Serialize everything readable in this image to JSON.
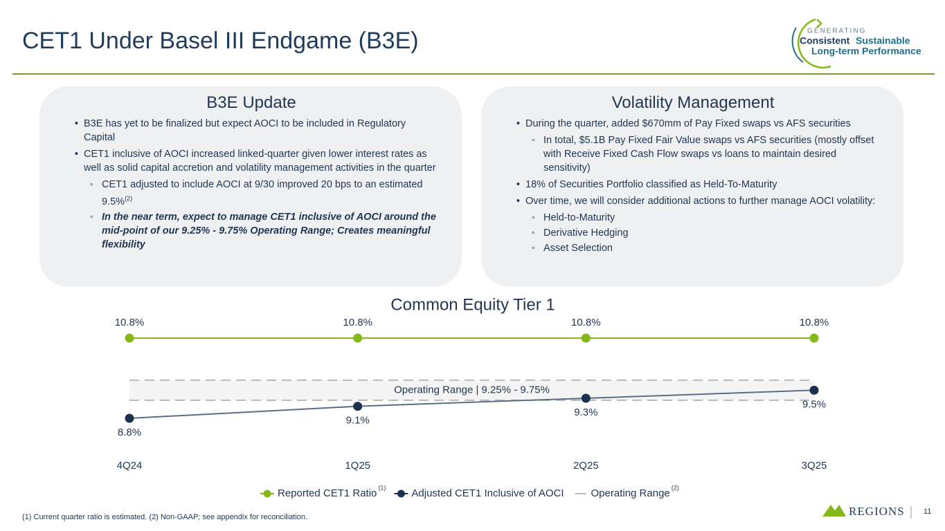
{
  "header": {
    "title": "CET1 Under Basel III Endgame (B3E)"
  },
  "logo": {
    "line1": "GENERATING",
    "word1": "Consistent",
    "word2": "Sustainable",
    "line3": "Long-term Performance"
  },
  "left_panel": {
    "title": "B3E Update",
    "items": [
      {
        "text": "B3E has yet to be finalized but expect AOCI to be included in Regulatory Capital"
      },
      {
        "text": "CET1 inclusive of AOCI increased linked-quarter given lower interest rates as well as solid capital accretion and volatility management activities in the quarter",
        "sub": [
          {
            "text": "CET1 adjusted to include AOCI at 9/30 improved 20 bps to an estimated 9.5%",
            "note": "(2)"
          },
          {
            "text": "In the near term, expect to manage CET1 inclusive of AOCI around the mid-point of our 9.25% - 9.75% Operating Range; Creates meaningful flexibility"
          }
        ]
      }
    ]
  },
  "right_panel": {
    "title": "Volatility Management",
    "items": [
      {
        "text": "During the quarter, added $670mm of Pay Fixed swaps vs AFS securities",
        "sub": [
          {
            "text": "In total, $5.1B Pay Fixed Fair Value swaps vs AFS securities (mostly offset with Receive Fixed Cash Flow swaps vs loans to maintain desired sensitivity)"
          }
        ]
      },
      {
        "text": "18% of Securities Portfolio classified as Held-To-Maturity"
      },
      {
        "text": "Over time, we will consider additional actions to further manage AOCI volatility:",
        "sub": [
          {
            "text": "Held-to-Maturity"
          },
          {
            "text": "Derivative Hedging"
          },
          {
            "text": "Asset Selection"
          }
        ]
      }
    ]
  },
  "chart_data": {
    "type": "line",
    "title": "Common Equity Tier 1",
    "categories": [
      "4Q24",
      "1Q25",
      "2Q25",
      "3Q25"
    ],
    "series": [
      {
        "name": "Reported CET1 Ratio",
        "note": "(1)",
        "color": "#84b818",
        "values": [
          10.8,
          10.8,
          10.8,
          10.8
        ],
        "value_labels": [
          "10.8%",
          "10.8%",
          "10.8%",
          "10.8%"
        ],
        "label_position": "above"
      },
      {
        "name": "Adjusted CET1 Inclusive of AOCI",
        "color": "#1c3050",
        "values": [
          8.8,
          9.1,
          9.3,
          9.5
        ],
        "value_labels": [
          "8.8%",
          "9.1%",
          "9.3%",
          "9.5%"
        ],
        "label_position": "below"
      }
    ],
    "range": {
      "name": "Operating Range",
      "note": "(2)",
      "label": "Operating Range | 9.25% - 9.75%",
      "low": 9.25,
      "high": 9.75,
      "color": "#b8b8b8"
    },
    "legend": "bottom"
  },
  "footnote": "(1) Current quarter ratio is estimated. (2) Non-GAAP; see appendix for reconciliation.",
  "footer": {
    "brand": "REGIONS",
    "page": "11"
  }
}
